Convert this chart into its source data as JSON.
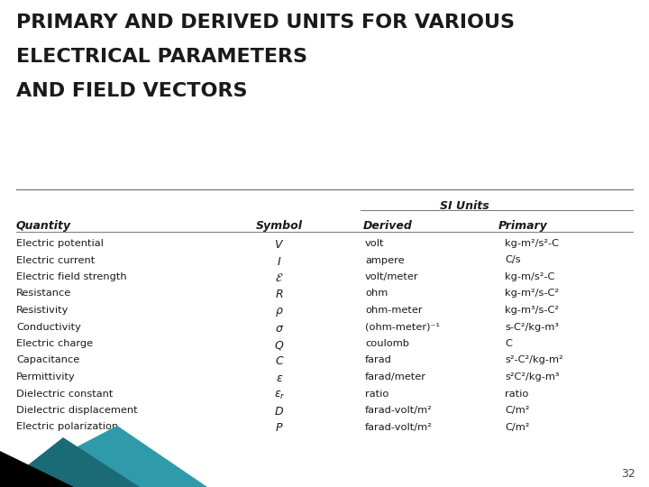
{
  "title_lines": [
    "PRIMARY AND DERIVED UNITS FOR VARIOUS",
    "ELECTRICAL PARAMETERS",
    "AND FIELD VECTORS"
  ],
  "title_fontsize": 16,
  "bg_color": "#ffffff",
  "slide_number": "32",
  "header_row": [
    "Quantity",
    "Symbol",
    "Derived",
    "Primary"
  ],
  "si_units_label": "SI Units",
  "rows": [
    [
      "Electric potential",
      "V",
      "volt",
      "kg-m²/s²-C"
    ],
    [
      "Electric current",
      "I",
      "ampere",
      "C/s"
    ],
    [
      "Electric field strength",
      "\\mathcal{E}",
      "volt/meter",
      "kg-m/s²-C"
    ],
    [
      "Resistance",
      "R",
      "ohm",
      "kg-m²/s-C²"
    ],
    [
      "Resistivity",
      "\\rho",
      "ohm-meter",
      "kg-m³/s-C²"
    ],
    [
      "Conductivity",
      "\\sigma",
      "(ohm-meter)⁻¹",
      "s-C²/kg-m³"
    ],
    [
      "Electric charge",
      "Q",
      "coulomb",
      "C"
    ],
    [
      "Capacitance",
      "C",
      "farad",
      "s²-C²/kg-m²"
    ],
    [
      "Permittivity",
      "\\varepsilon",
      "farad/meter",
      "s²C²/kg-m³"
    ],
    [
      "Dielectric constant",
      "\\epsilon_r",
      "ratio",
      "ratio"
    ],
    [
      "Dielectric displacement",
      "D",
      "farad-volt/m²",
      "C/m²"
    ],
    [
      "Electric polarization",
      "P",
      "farad-volt/m²",
      "C/m²"
    ]
  ],
  "text_color": "#1a1a1a",
  "line_color": "#777777",
  "teal_color": "#2e9aaa",
  "dark_teal_color": "#1b6b77",
  "black_color": "#000000"
}
